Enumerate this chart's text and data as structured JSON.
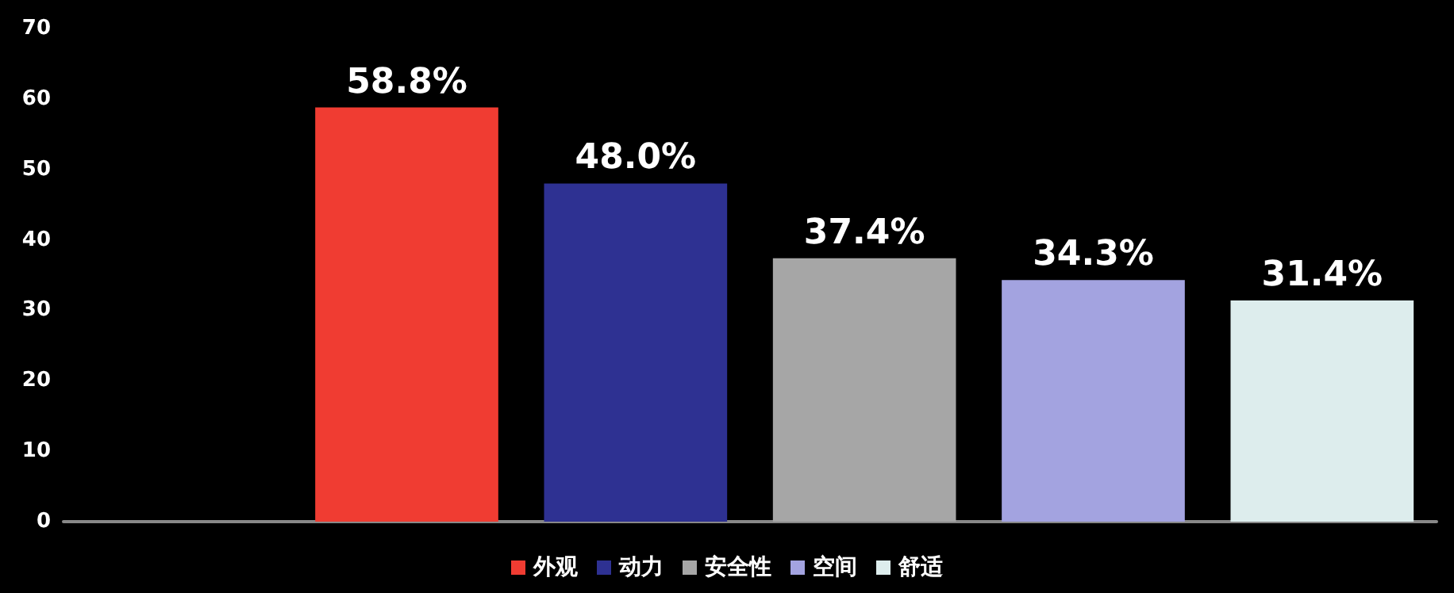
{
  "chart_data": {
    "type": "bar",
    "categories": [
      null,
      null,
      null,
      null,
      null,
      null
    ],
    "series": [
      {
        "name": "外观",
        "color": "#f03c32",
        "values": [
          null,
          58.8,
          null,
          null,
          null,
          null
        ],
        "value_labels": [
          null,
          "58.8%",
          null,
          null,
          null,
          null
        ]
      },
      {
        "name": "动力",
        "color": "#2e3192",
        "values": [
          null,
          null,
          48.0,
          null,
          null,
          null
        ],
        "value_labels": [
          null,
          null,
          "48.0%",
          null,
          null,
          null
        ]
      },
      {
        "name": "安全性",
        "color": "#a6a6a6",
        "values": [
          null,
          null,
          null,
          37.4,
          null,
          null
        ],
        "value_labels": [
          null,
          null,
          null,
          "37.4%",
          null,
          null
        ]
      },
      {
        "name": "空间",
        "color": "#a3a3e0",
        "values": [
          null,
          null,
          null,
          null,
          34.3,
          null
        ],
        "value_labels": [
          null,
          null,
          null,
          null,
          "34.3%",
          null
        ]
      },
      {
        "name": "舒适",
        "color": "#ddeded",
        "values": [
          null,
          null,
          null,
          null,
          null,
          31.4
        ],
        "value_labels": [
          null,
          null,
          null,
          null,
          null,
          "31.4%"
        ]
      }
    ],
    "ylim": [
      0,
      70
    ],
    "yticks": [
      0,
      10,
      20,
      30,
      40,
      50,
      60,
      70
    ],
    "grid": false,
    "legend": "bottom"
  }
}
